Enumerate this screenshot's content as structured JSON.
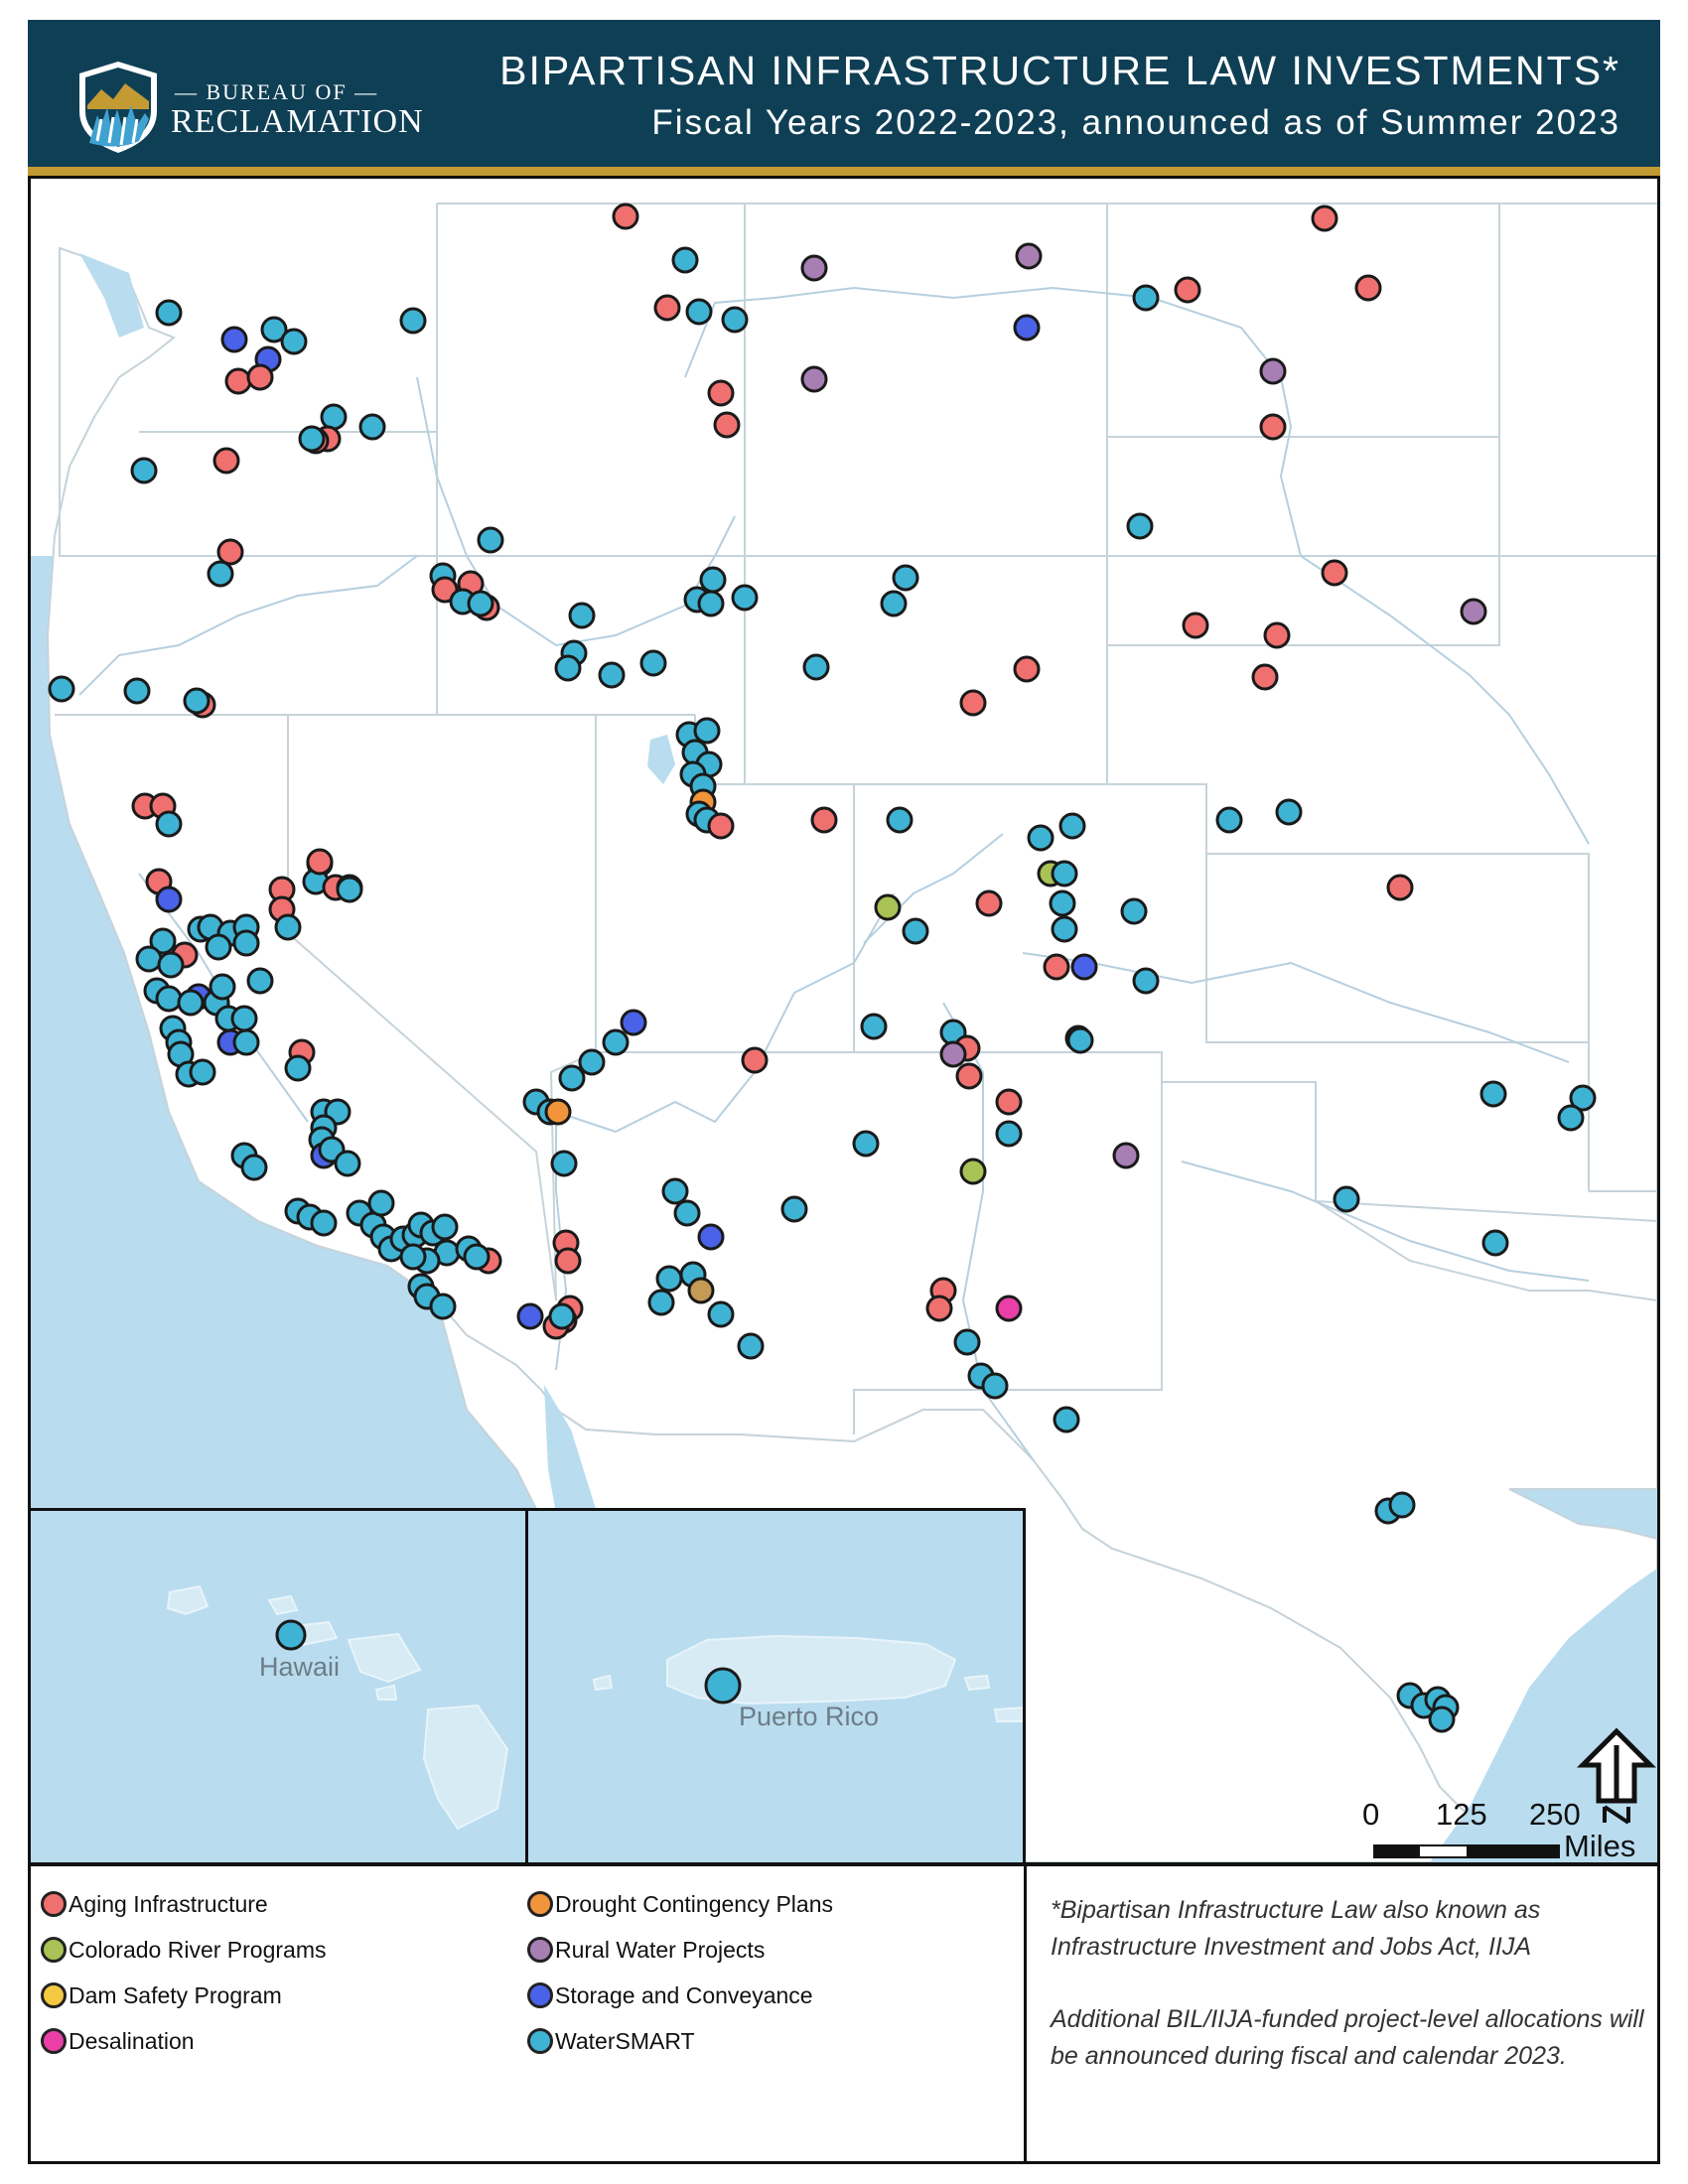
{
  "header": {
    "logo_top": "— BUREAU OF —",
    "logo_main": "RECLAMATION",
    "title": "BIPARTISAN INFRASTRUCTURE LAW INVESTMENTS*",
    "subtitle": "Fiscal Years 2022-2023, announced as of Summer 2023"
  },
  "colors": {
    "header_bg": "#0f3f55",
    "gold_rule": "#c49a32",
    "ocean": "#b9dcef",
    "land": "#ffffff",
    "aging": "#f07070",
    "colorado": "#a8c255",
    "dam": "#f5c842",
    "desal": "#ea3fa6",
    "drought": "#f2943a",
    "rural": "#a77fb3",
    "storage": "#4a62e8",
    "watersmart": "#3fb3d3"
  },
  "insets": {
    "hawaii": "Hawaii",
    "puerto_rico": "Puerto Rico"
  },
  "scale": {
    "tick_0": "0",
    "tick_125": "125",
    "tick_250": "250",
    "unit": "Miles"
  },
  "north_icon": "north-arrow-icon",
  "legend": {
    "items": [
      {
        "label": "Aging Infrastructure",
        "key": "aging"
      },
      {
        "label": "Colorado River Programs",
        "key": "colorado"
      },
      {
        "label": "Dam Safety Program",
        "key": "dam"
      },
      {
        "label": "Desalination",
        "key": "desal"
      },
      {
        "label": "Drought Contingency Plans",
        "key": "drought"
      },
      {
        "label": "Rural Water Projects",
        "key": "rural"
      },
      {
        "label": "Storage and Conveyance",
        "key": "storage"
      },
      {
        "label": "WaterSMART",
        "key": "watersmart"
      }
    ]
  },
  "notes": {
    "footnote": "*Bipartisan Infrastructure Law also known as Infrastructure Investment and Jobs Act, IIJA",
    "additional": "Additional BIL/IIJA-funded project-level allocations will be announced during fiscal and calendar 2023."
  }
}
